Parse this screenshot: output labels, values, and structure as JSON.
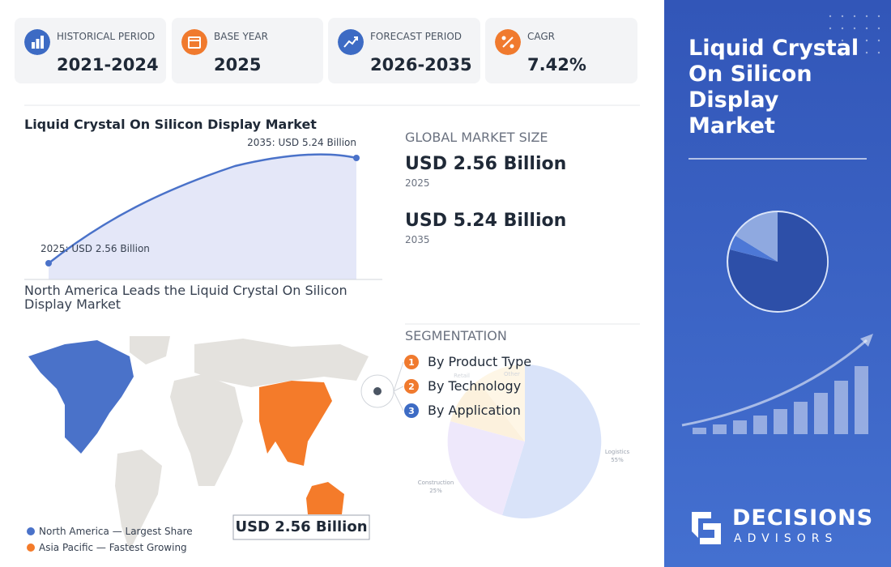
{
  "stats": [
    {
      "label": "HISTORICAL PERIOD",
      "value": "2021-2024"
    },
    {
      "label": "BASE YEAR",
      "value": "2025"
    },
    {
      "label": "FORECAST PERIOD",
      "value": "2026-2035"
    },
    {
      "label": "CAGR",
      "value": "7.42%"
    }
  ],
  "growth_chart": {
    "title": "Liquid Crystal On Silicon Display Market",
    "start_label": "2025: USD 2.56 Billion",
    "end_label": "2035: USD 5.24 Billion"
  },
  "market_size": {
    "heading": "GLOBAL MARKET SIZE",
    "items": [
      {
        "value": "USD 2.56 Billion",
        "year": "2025"
      },
      {
        "value": "USD 5.24 Billion",
        "year": "2035"
      }
    ]
  },
  "map": {
    "title": "North America Leads the Liquid Crystal On Silicon Display Market",
    "badge": "USD 2.56 Billion",
    "legend": [
      "North America — Largest Share",
      "Asia Pacific — Fastest Growing"
    ]
  },
  "segmentation": {
    "heading": "SEGMENTATION",
    "items": [
      {
        "number": "1",
        "label": "By Product Type"
      },
      {
        "number": "2",
        "label": "By Technology"
      },
      {
        "number": "3",
        "label": "By Application"
      }
    ],
    "pie_labels": [
      {
        "name": "Logistics",
        "share": "55%"
      },
      {
        "name": "Construction",
        "share": "25%"
      },
      {
        "name": "Retail"
      },
      {
        "name": "Other"
      }
    ]
  },
  "side_panel": {
    "title": "Liquid Crystal On Silicon Display Market",
    "brand": "DECISIONS",
    "brand_sub": "ADVISORS"
  }
}
